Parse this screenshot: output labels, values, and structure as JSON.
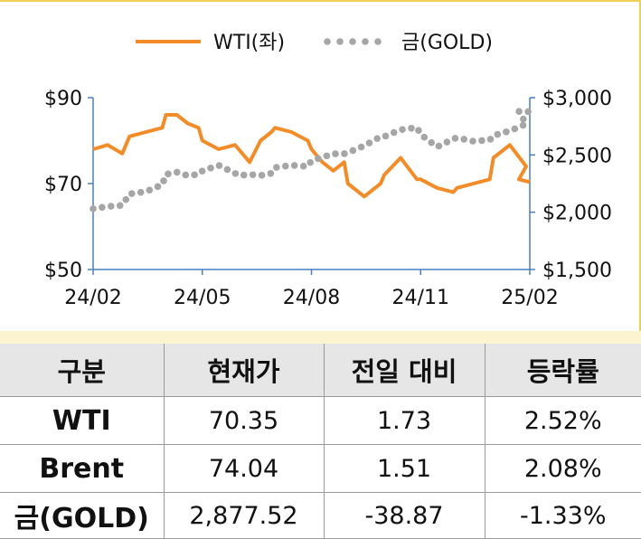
{
  "chart_data": {
    "type": "line",
    "legend": {
      "position": "top",
      "entries": [
        "WTI(좌)",
        "금(GOLD)"
      ]
    },
    "x_ticks": [
      "24/02",
      "24/05",
      "24/08",
      "24/11",
      "25/02"
    ],
    "y_left": {
      "ticks": [
        "$90",
        "$70",
        "$50"
      ],
      "range": [
        50,
        90
      ]
    },
    "y_right": {
      "ticks": [
        "$3,000",
        "$2,500",
        "$2,000",
        "$1,500"
      ],
      "range": [
        1500,
        3000
      ]
    },
    "grid": false,
    "series": [
      {
        "name": "WTI(좌)",
        "axis": "left",
        "color": "#f28c28",
        "style": "solid",
        "points": [
          [
            "24/02",
            78
          ],
          [
            "24/02",
            79
          ],
          [
            "24/02",
            77
          ],
          [
            "24/03",
            81
          ],
          [
            "24/03",
            82
          ],
          [
            "24/03",
            83
          ],
          [
            "24/04",
            86
          ],
          [
            "24/04",
            86
          ],
          [
            "24/04",
            84
          ],
          [
            "24/04",
            83
          ],
          [
            "24/05",
            80
          ],
          [
            "24/05",
            78
          ],
          [
            "24/05",
            79
          ],
          [
            "24/06",
            78
          ],
          [
            "24/06",
            75
          ],
          [
            "24/06",
            80
          ],
          [
            "24/06",
            82
          ],
          [
            "24/07",
            83
          ],
          [
            "24/07",
            82
          ],
          [
            "24/07",
            80
          ],
          [
            "24/08",
            78
          ],
          [
            "24/08",
            75
          ],
          [
            "24/08",
            73
          ],
          [
            "24/08",
            75
          ],
          [
            "24/09",
            70
          ],
          [
            "24/09",
            67
          ],
          [
            "24/09",
            70
          ],
          [
            "24/10",
            72
          ],
          [
            "24/10",
            76
          ],
          [
            "24/10",
            71
          ],
          [
            "24/11",
            71
          ],
          [
            "24/11",
            69
          ],
          [
            "24/11",
            68
          ],
          [
            "24/12",
            69
          ],
          [
            "24/12",
            70
          ],
          [
            "24/12",
            71
          ],
          [
            "25/01",
            76
          ],
          [
            "25/01",
            79
          ],
          [
            "25/01",
            74
          ],
          [
            "25/02",
            71
          ],
          [
            "25/02",
            70.35
          ]
        ]
      },
      {
        "name": "금(GOLD)",
        "axis": "right",
        "color": "#a6a6a6",
        "style": "dotted",
        "points": [
          [
            "24/02",
            2030
          ],
          [
            "24/02",
            2050
          ],
          [
            "24/02",
            2060
          ],
          [
            "24/03",
            2160
          ],
          [
            "24/03",
            2180
          ],
          [
            "24/03",
            2240
          ],
          [
            "24/04",
            2330
          ],
          [
            "24/04",
            2350
          ],
          [
            "24/04",
            2320
          ],
          [
            "24/04",
            2330
          ],
          [
            "24/05",
            2360
          ],
          [
            "24/05",
            2410
          ],
          [
            "24/05",
            2340
          ],
          [
            "24/06",
            2320
          ],
          [
            "24/06",
            2330
          ],
          [
            "24/06",
            2320
          ],
          [
            "24/06",
            2340
          ],
          [
            "24/07",
            2390
          ],
          [
            "24/07",
            2410
          ],
          [
            "24/07",
            2400
          ],
          [
            "24/08",
            2450
          ],
          [
            "24/08",
            2480
          ],
          [
            "24/08",
            2510
          ],
          [
            "24/08",
            2510
          ],
          [
            "24/09",
            2520
          ],
          [
            "24/09",
            2580
          ],
          [
            "24/09",
            2660
          ],
          [
            "24/10",
            2660
          ],
          [
            "24/10",
            2720
          ],
          [
            "24/10",
            2740
          ],
          [
            "24/11",
            2680
          ],
          [
            "24/11",
            2570
          ],
          [
            "24/11",
            2640
          ],
          [
            "24/12",
            2650
          ],
          [
            "24/12",
            2620
          ],
          [
            "24/12",
            2630
          ],
          [
            "25/01",
            2670
          ],
          [
            "25/01",
            2710
          ],
          [
            "25/01",
            2770
          ],
          [
            "25/02",
            2880
          ],
          [
            "25/02",
            2877.52
          ]
        ]
      }
    ]
  },
  "table": {
    "headers": [
      "구분",
      "현재가",
      "전일 대비",
      "등락률"
    ],
    "rows": [
      {
        "name": "WTI",
        "price": "70.35",
        "change": "1.73",
        "rate": "2.52%"
      },
      {
        "name": "Brent",
        "price": "74.04",
        "change": "1.51",
        "rate": "2.08%"
      },
      {
        "name": "금(GOLD)",
        "price": "2,877.52",
        "change": "-38.87",
        "rate": "-1.33%"
      }
    ]
  }
}
